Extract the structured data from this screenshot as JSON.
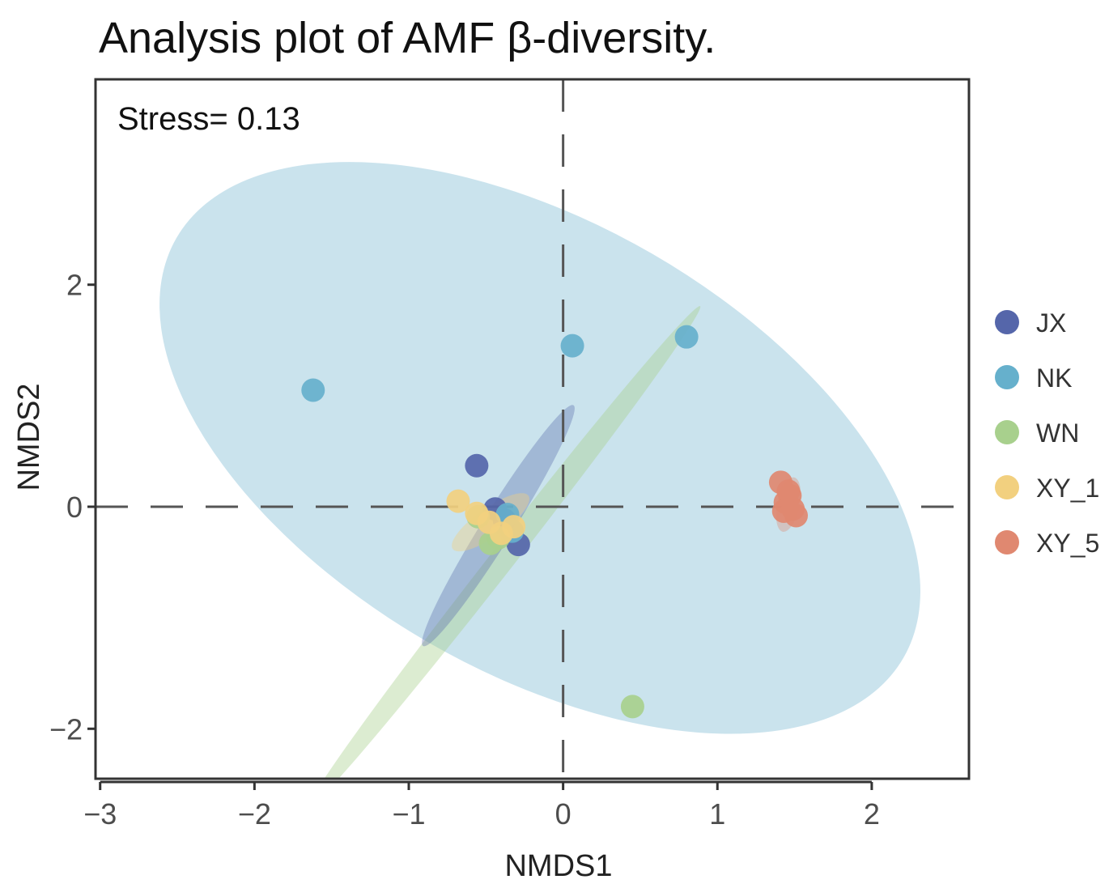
{
  "chart_data": {
    "type": "scatter",
    "title": "Analysis plot of AMF β-diversity.",
    "annotation": "Stress= 0.13",
    "xlabel": "NMDS1",
    "ylabel": "NMDS2",
    "xlim": [
      -3.03,
      2.63
    ],
    "ylim": [
      -2.45,
      3.85
    ],
    "xticks": [
      -3,
      -2,
      -1,
      0,
      1,
      2
    ],
    "yticks": [
      -2,
      0,
      2
    ],
    "xtick_labels": [
      "−3",
      "−2",
      "−1",
      "0",
      "1",
      "2"
    ],
    "ytick_labels": [
      "−2",
      "0",
      "2"
    ],
    "reference_lines": {
      "x": 0,
      "y": 0
    },
    "grid": false,
    "legend_position": "right",
    "series": [
      {
        "name": "JX",
        "color": "#5566aa",
        "points": [
          [
            -0.56,
            0.37
          ],
          [
            -0.44,
            -0.02
          ],
          [
            -0.29,
            -0.34
          ],
          [
            -0.38,
            -0.12
          ]
        ],
        "ellipse": {
          "cx": -0.42,
          "cy": -0.17,
          "rx": 0.92,
          "ry": 0.14,
          "angle_deg": -58,
          "opacity": 0.35
        }
      },
      {
        "name": "NK",
        "color": "#66b0cc",
        "points": [
          [
            -1.62,
            1.05
          ],
          [
            0.06,
            1.45
          ],
          [
            0.8,
            1.53
          ],
          [
            -0.36,
            -0.07
          ],
          [
            -0.33,
            -0.22
          ]
        ],
        "ellipse": {
          "cx": -0.15,
          "cy": 0.53,
          "rx": 2.72,
          "ry": 2.02,
          "angle_deg": 30,
          "opacity": 0.35
        }
      },
      {
        "name": "WN",
        "color": "#a8d08d",
        "points": [
          [
            0.45,
            -1.8
          ],
          [
            -0.47,
            -0.33
          ],
          [
            -0.55,
            -0.09
          ],
          [
            -0.42,
            -0.28
          ]
        ],
        "ellipse": {
          "cx": -0.38,
          "cy": -0.45,
          "rx": 2.06,
          "ry": 0.11,
          "angle_deg": -52,
          "opacity": 0.4
        }
      },
      {
        "name": "XY_1",
        "color": "#f2d07f",
        "points": [
          [
            -0.68,
            0.05
          ],
          [
            -0.56,
            -0.06
          ],
          [
            -0.48,
            -0.14
          ],
          [
            -0.4,
            -0.24
          ],
          [
            -0.32,
            -0.18
          ]
        ],
        "ellipse": {
          "cx": -0.47,
          "cy": -0.14,
          "rx": 0.3,
          "ry": 0.13,
          "angle_deg": -35,
          "opacity": 0.4
        }
      },
      {
        "name": "XY_5",
        "color": "#e08870",
        "points": [
          [
            1.41,
            0.22
          ],
          [
            1.44,
            0.04
          ],
          [
            1.47,
            0.1
          ],
          [
            1.49,
            -0.02
          ],
          [
            1.51,
            -0.08
          ],
          [
            1.43,
            -0.04
          ],
          [
            1.46,
            0.14
          ]
        ],
        "ellipse": {
          "cx": 1.46,
          "cy": 0.02,
          "rx": 0.18,
          "ry": 0.1,
          "angle_deg": -78,
          "opacity": 0.35
        }
      }
    ]
  }
}
